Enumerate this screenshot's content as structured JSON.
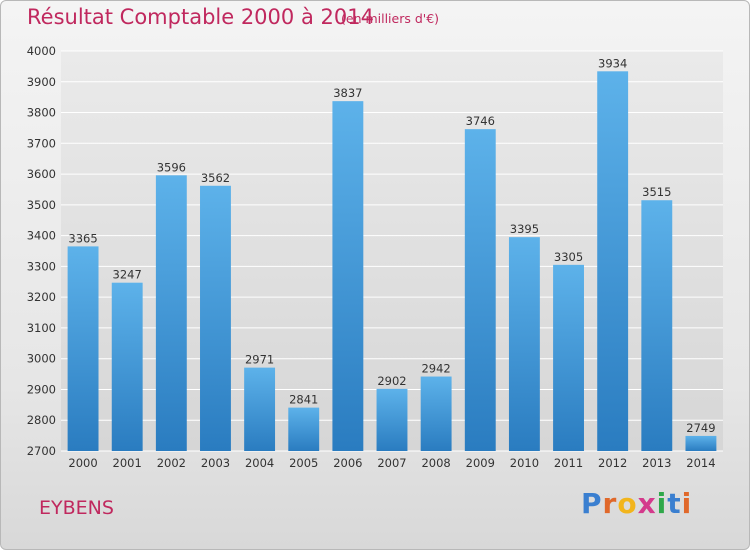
{
  "header": {
    "title": "Résultat Comptable 2000 à 2014",
    "subtitle": "(en milliers d'€)"
  },
  "footer": {
    "city": "EYBENS",
    "logo_letters": [
      "P",
      "r",
      "o",
      "x",
      "i",
      "t",
      "i"
    ],
    "logo_colors": [
      "#3a7fd0",
      "#e0682a",
      "#f2b51c",
      "#d43a8c",
      "#2fa84a",
      "#3a7fd0",
      "#e0682a"
    ]
  },
  "colors": {
    "bar_light": "#5db2ea",
    "bar_dark": "#2a7cc0",
    "grid": "#ffffff",
    "text": "#333333",
    "accent": "#c0285e"
  },
  "chart_data": {
    "type": "bar",
    "title": "Résultat Comptable 2000 à 2014",
    "subtitle": "(en milliers d'€)",
    "categories": [
      "2000",
      "2001",
      "2002",
      "2003",
      "2004",
      "2005",
      "2006",
      "2007",
      "2008",
      "2009",
      "2010",
      "2011",
      "2012",
      "2013",
      "2014"
    ],
    "values": [
      3365,
      3247,
      3596,
      3562,
      2971,
      2841,
      3837,
      2902,
      2942,
      3746,
      3395,
      3305,
      3934,
      3515,
      2749
    ],
    "ylim": [
      2700,
      4000
    ],
    "yticks": [
      2700,
      2800,
      2900,
      3000,
      3100,
      3200,
      3300,
      3400,
      3500,
      3600,
      3700,
      3800,
      3900,
      4000
    ],
    "grid": true,
    "data_labels": true
  }
}
